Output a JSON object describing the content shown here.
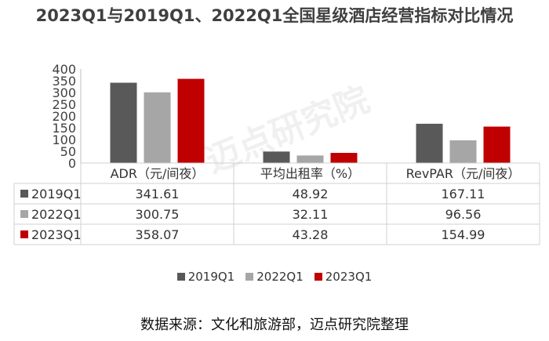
{
  "title": "2023Q1与2019Q1、2022Q1全国星级酒店经营指标对比情况",
  "watermark": "迈点研究院",
  "source_note": "数据来源：文化和旅游部，迈点研究院整理",
  "colors": {
    "2019Q1": "#595959",
    "2022Q1": "#a6a6a6",
    "2023Q1": "#c00000"
  },
  "chart_data": {
    "type": "bar",
    "categories": [
      "ADR（元/间夜）",
      "平均出租率（%）",
      "RevPAR（元/间夜）"
    ],
    "series": [
      {
        "name": "2019Q1",
        "values": [
          "341.61",
          "48.92",
          "167.11"
        ]
      },
      {
        "name": "2022Q1",
        "values": [
          "300.75",
          "32.11",
          "96.56"
        ]
      },
      {
        "name": "2023Q1",
        "values": [
          "358.07",
          "43.28",
          "154.99"
        ]
      }
    ],
    "yticks": [
      "0",
      "50",
      "100",
      "150",
      "200",
      "250",
      "300",
      "350",
      "400"
    ],
    "ylim": [
      0,
      400
    ],
    "grid": false,
    "legend_position": "bottom",
    "data_table": true
  }
}
